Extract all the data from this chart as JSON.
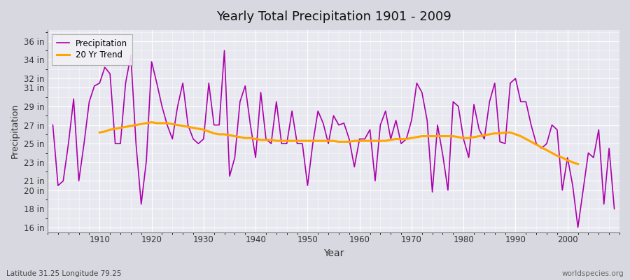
{
  "title": "Yearly Total Precipitation 1901 - 2009",
  "xlabel": "Year",
  "ylabel": "Precipitation",
  "subtitle_left": "Latitude 31.25 Longitude 79.25",
  "subtitle_right": "worldspecies.org",
  "figure_bg_color": "#d8d8e0",
  "plot_bg_color": "#e8e8f0",
  "line_color_precip": "#aa00aa",
  "line_color_trend": "#FFA500",
  "legend_precip": "Precipitation",
  "legend_trend": "20 Yr Trend",
  "ytick_labels": [
    "16 in",
    "18 in",
    "20 in",
    "21 in",
    "23 in",
    "25 in",
    "27 in",
    "29 in",
    "31 in",
    "32 in",
    "34 in",
    "36 in"
  ],
  "ytick_values": [
    16,
    18,
    20,
    21,
    23,
    25,
    27,
    29,
    31,
    32,
    34,
    36
  ],
  "ylim": [
    15.5,
    37.2
  ],
  "xlim": [
    1900,
    2010
  ],
  "years": [
    1901,
    1902,
    1903,
    1904,
    1905,
    1906,
    1907,
    1908,
    1909,
    1910,
    1911,
    1912,
    1913,
    1914,
    1915,
    1916,
    1917,
    1918,
    1919,
    1920,
    1921,
    1922,
    1923,
    1924,
    1925,
    1926,
    1927,
    1928,
    1929,
    1930,
    1931,
    1932,
    1933,
    1934,
    1935,
    1936,
    1937,
    1938,
    1939,
    1940,
    1941,
    1942,
    1943,
    1944,
    1945,
    1946,
    1947,
    1948,
    1949,
    1950,
    1951,
    1952,
    1953,
    1954,
    1955,
    1956,
    1957,
    1958,
    1959,
    1960,
    1961,
    1962,
    1963,
    1964,
    1965,
    1966,
    1967,
    1968,
    1969,
    1970,
    1971,
    1972,
    1973,
    1974,
    1975,
    1976,
    1977,
    1978,
    1979,
    1980,
    1981,
    1982,
    1983,
    1984,
    1985,
    1986,
    1987,
    1988,
    1989,
    1990,
    1991,
    1992,
    1993,
    1994,
    1995,
    1996,
    1997,
    1998,
    1999,
    2000,
    2001,
    2002,
    2003,
    2004,
    2005,
    2006,
    2007,
    2008,
    2009
  ],
  "precip": [
    27.0,
    20.5,
    21.0,
    25.0,
    29.8,
    21.0,
    25.0,
    29.5,
    31.2,
    31.5,
    33.2,
    32.5,
    25.0,
    25.0,
    31.5,
    34.5,
    25.0,
    18.5,
    23.2,
    33.8,
    31.5,
    29.0,
    27.0,
    25.5,
    29.0,
    31.5,
    27.0,
    25.5,
    25.0,
    25.5,
    31.5,
    27.0,
    27.0,
    35.0,
    21.5,
    23.5,
    29.5,
    31.2,
    27.0,
    23.5,
    30.5,
    25.5,
    25.0,
    29.5,
    25.0,
    25.0,
    28.5,
    25.0,
    25.0,
    20.5,
    25.0,
    28.5,
    27.2,
    25.0,
    28.0,
    27.0,
    27.2,
    25.5,
    22.5,
    25.5,
    25.5,
    26.5,
    21.0,
    27.0,
    28.5,
    25.5,
    27.5,
    25.0,
    25.5,
    27.5,
    31.5,
    30.5,
    27.5,
    19.8,
    27.0,
    23.8,
    20.0,
    29.5,
    29.0,
    25.5,
    23.5,
    29.2,
    26.5,
    25.5,
    29.5,
    31.5,
    25.2,
    25.0,
    31.5,
    32.0,
    29.5,
    29.5,
    27.0,
    25.0,
    24.5,
    25.0,
    27.0,
    26.5,
    20.0,
    23.5,
    20.5,
    16.0,
    20.0,
    24.0,
    23.5,
    26.5,
    18.5,
    24.5,
    18.0
  ],
  "trend": [
    null,
    null,
    null,
    null,
    null,
    null,
    null,
    null,
    null,
    26.2,
    26.3,
    26.5,
    26.6,
    26.7,
    26.8,
    26.9,
    27.0,
    27.1,
    27.2,
    27.3,
    27.2,
    27.2,
    27.2,
    27.1,
    27.0,
    26.9,
    26.8,
    26.7,
    26.6,
    26.5,
    26.3,
    26.1,
    26.0,
    26.0,
    25.9,
    25.8,
    25.7,
    25.6,
    25.6,
    25.5,
    25.4,
    25.4,
    25.4,
    25.3,
    25.3,
    25.3,
    25.3,
    25.3,
    25.3,
    25.3,
    25.3,
    25.3,
    25.3,
    25.3,
    25.3,
    25.2,
    25.2,
    25.2,
    25.3,
    25.3,
    25.3,
    25.3,
    25.3,
    25.3,
    25.3,
    25.4,
    25.5,
    25.5,
    25.5,
    25.6,
    25.7,
    25.8,
    25.8,
    25.8,
    25.8,
    25.8,
    25.8,
    25.8,
    25.7,
    25.6,
    25.6,
    25.7,
    25.8,
    25.9,
    26.0,
    26.1,
    26.1,
    26.2,
    26.2,
    26.0,
    25.8,
    25.5,
    25.2,
    24.9,
    24.6,
    24.3,
    24.0,
    23.7,
    23.5,
    23.2,
    23.0,
    22.8,
    null,
    null,
    null,
    null,
    null,
    null,
    null
  ]
}
